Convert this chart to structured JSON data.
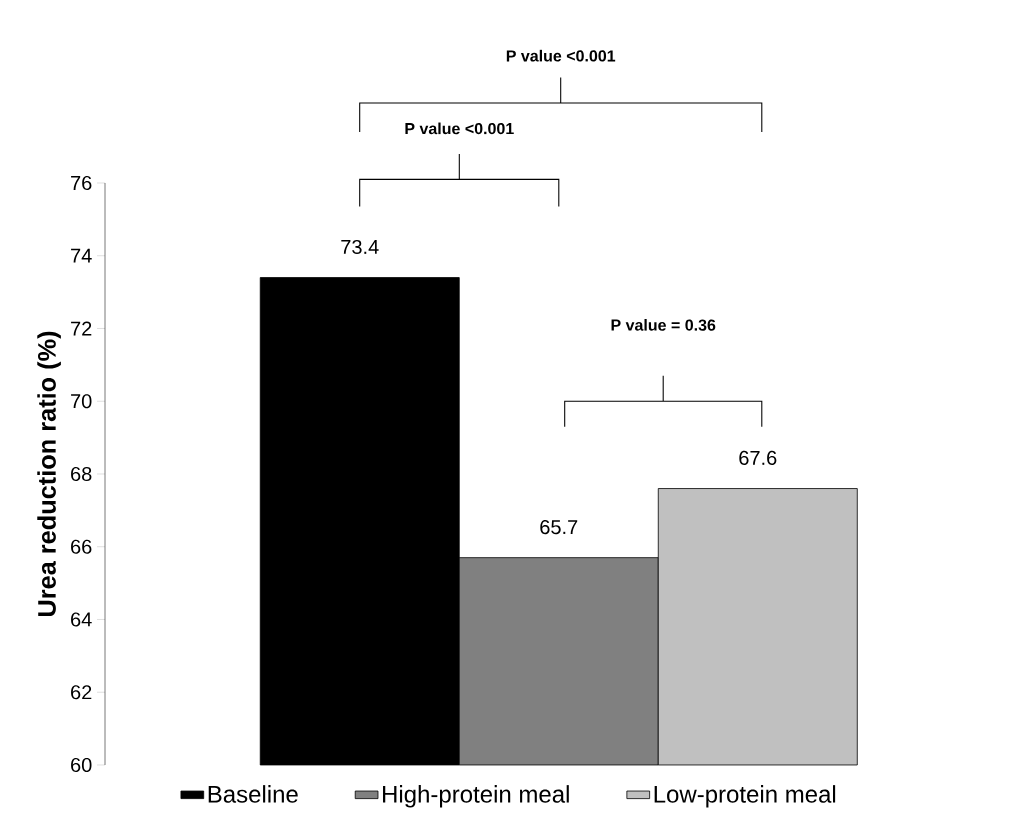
{
  "chart_data": {
    "type": "bar",
    "ylabel": "Urea reduction ratio (%)",
    "categories": [
      null
    ],
    "series": [
      {
        "name": "Baseline",
        "color": "#000000",
        "values": [
          73.4
        ]
      },
      {
        "name": "High-protein meal",
        "color": "#808080",
        "values": [
          65.7
        ]
      },
      {
        "name": "Low-protein meal",
        "color": "#c0c0c0",
        "values": [
          67.6
        ]
      }
    ],
    "ylim": [
      60,
      76
    ],
    "yticks": [
      60,
      62,
      64,
      66,
      68,
      70,
      72,
      74,
      76
    ],
    "data_labels": true,
    "legend": "bottom",
    "tick_labels": "y",
    "annotations": [
      "P value <0.001",
      "P value <0.001",
      "P value = 0.36"
    ]
  }
}
